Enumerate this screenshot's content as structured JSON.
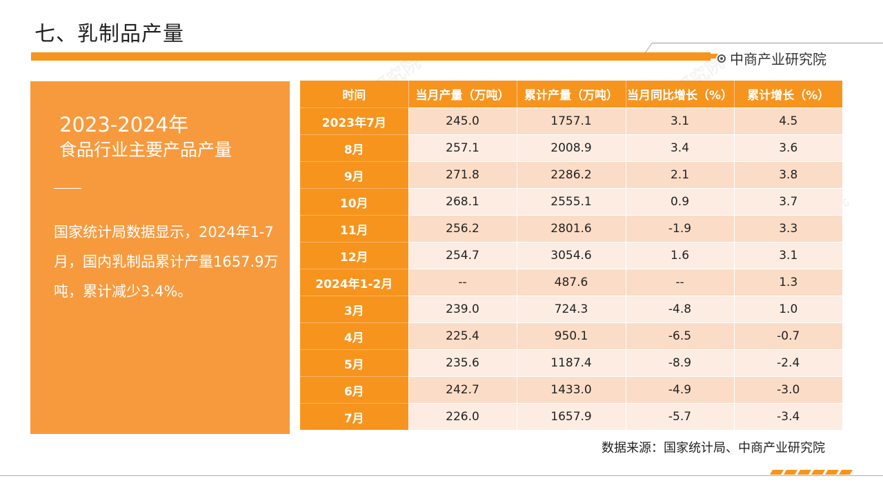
{
  "page_title": "七、乳制品产量",
  "brand": "中商产业研究院",
  "panel": {
    "title_line1": "2023-2024年",
    "title_line2": "食品行业主要产品产量",
    "text": "国家统计局数据显示，2024年1-7月，国内乳制品累计产量1657.9万吨，累计减少3.4%。"
  },
  "table": {
    "headers": [
      "时间",
      "当月产量（万吨）",
      "累计产量（万吨）",
      "当月同比增长（%）",
      "累计增长（%）"
    ],
    "rows": [
      [
        "2023年7月",
        "245.0",
        "1757.1",
        "3.1",
        "4.5"
      ],
      [
        "8月",
        "257.1",
        "2008.9",
        "3.4",
        "3.6"
      ],
      [
        "9月",
        "271.8",
        "2286.2",
        "2.1",
        "3.8"
      ],
      [
        "10月",
        "268.1",
        "2555.1",
        "0.9",
        "3.7"
      ],
      [
        "11月",
        "256.2",
        "2801.6",
        "-1.9",
        "3.3"
      ],
      [
        "12月",
        "254.7",
        "3054.6",
        "1.6",
        "3.1"
      ],
      [
        "2024年1-2月",
        "--",
        "487.6",
        "--",
        "1.3"
      ],
      [
        "3月",
        "239.0",
        "724.3",
        "-4.8",
        "1.0"
      ],
      [
        "4月",
        "225.4",
        "950.1",
        "-6.5",
        "-0.7"
      ],
      [
        "5月",
        "235.6",
        "1187.4",
        "-8.9",
        "-2.4"
      ],
      [
        "6月",
        "242.7",
        "1433.0",
        "-4.9",
        "-3.0"
      ],
      [
        "7月",
        "226.0",
        "1657.9",
        "-5.7",
        "-3.4"
      ]
    ]
  },
  "source": "数据来源：国家统计局、中商产业研究院",
  "colors": {
    "accent": "#f7941d",
    "panel": "#f79a3e",
    "row_dark": "#fbdcc7",
    "row_light": "#fdece2"
  },
  "icons": {
    "brand": "circle-dot-icon"
  }
}
